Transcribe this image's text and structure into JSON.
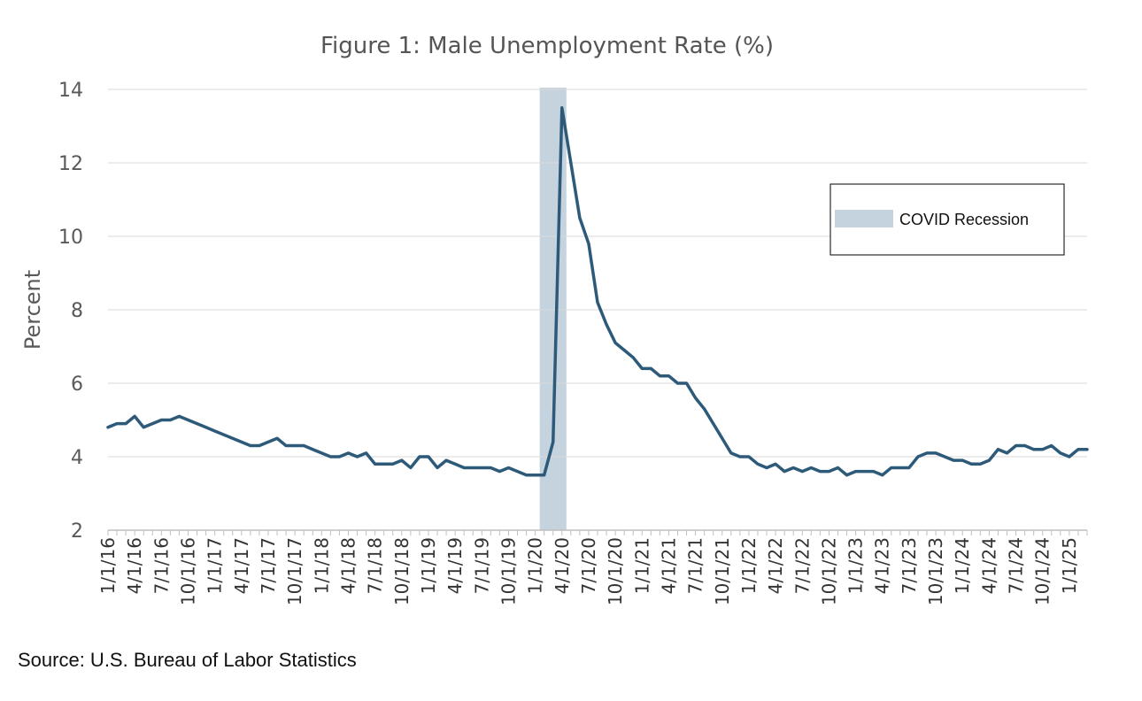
{
  "chart_data": {
    "type": "line",
    "title": "Figure 1: Male Unemployment Rate (%)",
    "xlabel": "",
    "ylabel": "Percent",
    "ylim": [
      2,
      14
    ],
    "yticks": [
      2,
      4,
      6,
      8,
      10,
      12,
      14
    ],
    "grid": "horizontal",
    "legend_position": "top-right",
    "line_color": "#2e5a7a",
    "shade_color": "#c5d3de",
    "x_start": "2016-01",
    "x_tick_labels": [
      "1/1/16",
      "4/1/16",
      "7/1/16",
      "10/1/16",
      "1/1/17",
      "4/1/17",
      "7/1/17",
      "10/1/17",
      "1/1/18",
      "4/1/18",
      "7/1/18",
      "10/1/18",
      "1/1/19",
      "4/1/19",
      "7/1/19",
      "10/1/19",
      "1/1/20",
      "4/1/20",
      "7/1/20",
      "10/1/20",
      "1/1/21",
      "4/1/21",
      "7/1/21",
      "10/1/21",
      "1/1/22",
      "4/1/22",
      "7/1/22",
      "10/1/22",
      "1/1/23",
      "4/1/23",
      "7/1/23",
      "10/1/23",
      "1/1/24",
      "4/1/24",
      "7/1/24",
      "10/1/24",
      "1/1/25"
    ],
    "recession": {
      "label": "COVID Recession",
      "start": "2020-02",
      "end": "2020-04"
    },
    "series": [
      {
        "values": [
          4.8,
          4.9,
          4.9,
          5.1,
          4.8,
          4.9,
          5.0,
          5.0,
          5.1,
          5.0,
          4.9,
          4.8,
          4.7,
          4.6,
          4.5,
          4.4,
          4.3,
          4.3,
          4.4,
          4.5,
          4.3,
          4.3,
          4.3,
          4.2,
          4.1,
          4.0,
          4.0,
          4.1,
          4.0,
          4.1,
          3.8,
          3.8,
          3.8,
          3.9,
          3.7,
          4.0,
          4.0,
          3.7,
          3.9,
          3.8,
          3.7,
          3.7,
          3.7,
          3.7,
          3.6,
          3.7,
          3.6,
          3.5,
          3.5,
          3.5,
          4.4,
          13.5,
          12.0,
          10.5,
          9.8,
          8.2,
          7.6,
          7.1,
          6.9,
          6.7,
          6.4,
          6.4,
          6.2,
          6.2,
          6.0,
          6.0,
          5.6,
          5.3,
          4.9,
          4.5,
          4.1,
          4.0,
          4.0,
          3.8,
          3.7,
          3.8,
          3.6,
          3.7,
          3.6,
          3.7,
          3.6,
          3.6,
          3.7,
          3.5,
          3.6,
          3.6,
          3.6,
          3.5,
          3.7,
          3.7,
          3.7,
          4.0,
          4.1,
          4.1,
          4.0,
          3.9,
          3.9,
          3.8,
          3.8,
          3.9,
          4.2,
          4.1,
          4.3,
          4.3,
          4.2,
          4.2,
          4.3,
          4.1,
          4.0,
          4.2,
          4.2
        ]
      }
    ]
  },
  "source": "Source: U.S. Bureau of Labor Statistics"
}
